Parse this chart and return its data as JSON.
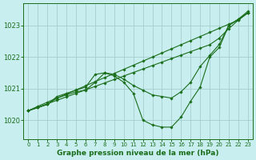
{
  "title": "Graphe pression niveau de la mer (hPa)",
  "bg_color": "#c8eef0",
  "grid_color": "#a0c8c8",
  "line_color": "#1a6e1a",
  "marker_color": "#1a6e1a",
  "xlim": [
    -0.5,
    23.5
  ],
  "ylim": [
    1019.4,
    1023.7
  ],
  "yticks": [
    1020,
    1021,
    1022,
    1023
  ],
  "xticks": [
    0,
    1,
    2,
    3,
    4,
    5,
    6,
    7,
    8,
    9,
    10,
    11,
    12,
    13,
    14,
    15,
    16,
    17,
    18,
    19,
    20,
    21,
    22,
    23
  ],
  "series": [
    [
      1020.3,
      1020.44,
      1020.57,
      1020.7,
      1020.83,
      1020.96,
      1021.09,
      1021.22,
      1021.35,
      1021.48,
      1021.61,
      1021.74,
      1021.87,
      1022.0,
      1022.13,
      1022.26,
      1022.39,
      1022.52,
      1022.65,
      1022.78,
      1022.91,
      1023.04,
      1023.17,
      1023.4
    ],
    [
      1020.3,
      1020.41,
      1020.52,
      1020.63,
      1020.74,
      1020.85,
      1020.96,
      1021.07,
      1021.18,
      1021.29,
      1021.4,
      1021.51,
      1021.62,
      1021.73,
      1021.84,
      1021.95,
      1022.06,
      1022.17,
      1022.28,
      1022.39,
      1022.6,
      1022.9,
      1023.17,
      1023.4
    ],
    [
      1020.3,
      1020.4,
      1020.5,
      1020.75,
      1020.85,
      1020.95,
      1021.05,
      1021.45,
      1021.5,
      1021.45,
      1021.3,
      1021.1,
      1020.95,
      1020.8,
      1020.75,
      1020.7,
      1020.9,
      1021.2,
      1021.7,
      1022.05,
      1022.4,
      1023.0,
      1023.2,
      1023.45
    ],
    [
      1020.3,
      1020.4,
      1020.5,
      1020.7,
      1020.8,
      1020.9,
      1020.95,
      1021.2,
      1021.5,
      1021.4,
      1021.2,
      1020.85,
      1020.0,
      1019.85,
      1019.78,
      1019.78,
      1020.1,
      1020.6,
      1021.05,
      1022.0,
      1022.3,
      1023.0,
      1023.2,
      1023.4
    ]
  ]
}
